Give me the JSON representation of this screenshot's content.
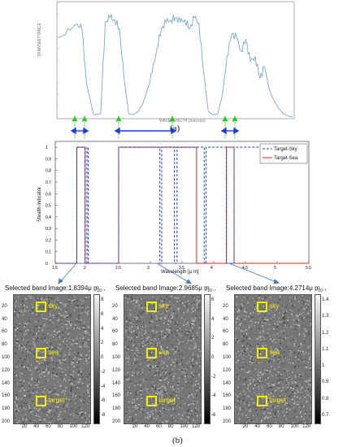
{
  "top_chart": {
    "ylabel": "TRANSMITTANCE",
    "xlabel": "WAVELENGTH (microns)",
    "caption": "(a)"
  },
  "mid_chart": {
    "xlabel": "Wavelength [μ m]",
    "ylabel": "Stealth indicator",
    "legend": [
      "Target-Sky",
      "Target-Sea"
    ],
    "xticks": [
      "1.5",
      "2",
      "2.5",
      "3",
      "3.5",
      "4",
      "4.5",
      "5",
      "5.5"
    ],
    "yticks": [
      "0",
      "0.1",
      "0.2",
      "0.3",
      "0.4",
      "0.5",
      "0.6",
      "0.7",
      "0.8",
      "0.9",
      "1"
    ]
  },
  "chart_data": [
    {
      "type": "line",
      "title": "",
      "xlabel": "WAVELENGTH (microns)",
      "ylabel": "TRANSMITTANCE",
      "series": [
        {
          "name": "",
          "x": [
            0.0,
            0.04,
            0.08,
            0.1,
            0.12,
            0.15,
            0.18,
            0.2,
            0.22,
            0.24,
            0.26,
            0.28,
            0.3,
            0.32,
            0.34,
            0.36,
            0.38,
            0.4,
            0.42,
            0.44,
            0.46,
            0.48,
            0.5,
            0.52,
            0.54,
            0.56,
            0.58,
            0.6,
            0.62,
            0.64,
            0.66,
            0.68,
            0.7,
            0.72,
            0.74,
            0.76,
            0.78,
            0.8,
            0.82,
            0.84,
            0.86,
            0.88,
            0.9,
            0.92,
            0.94,
            0.96,
            0.98,
            1.0
          ],
          "y": [
            0.72,
            0.8,
            0.84,
            0.8,
            0.3,
            0.02,
            0.03,
            0.86,
            0.9,
            0.88,
            0.8,
            0.35,
            0.03,
            0.02,
            0.05,
            0.12,
            0.25,
            0.4,
            0.62,
            0.8,
            0.86,
            0.88,
            0.9,
            0.86,
            0.88,
            0.8,
            0.9,
            0.85,
            0.4,
            0.05,
            0.02,
            0.03,
            0.2,
            0.55,
            0.75,
            0.72,
            0.6,
            0.7,
            0.5,
            0.55,
            0.35,
            0.45,
            0.25,
            0.15,
            0.08,
            0.03,
            0.01,
            0.0
          ]
        }
      ]
    },
    {
      "type": "line",
      "title": "",
      "xlabel": "Wavelength [μ m]",
      "ylabel": "Stealth indicator",
      "xlim": [
        1.5,
        5.5
      ],
      "ylim": [
        0,
        1.05
      ],
      "legend_position": "top-right",
      "series": [
        {
          "name": "Target-Sky",
          "x": [
            1.5,
            1.84,
            1.84,
            1.97,
            1.97,
            2.0,
            2.0,
            2.02,
            2.02,
            2.5,
            2.5,
            3.15,
            3.15,
            3.18,
            3.18,
            3.38,
            3.38,
            3.42,
            3.42,
            3.85,
            3.85,
            3.88,
            3.88,
            4.2,
            4.2,
            4.32,
            4.32,
            5.5
          ],
          "y": [
            0,
            0,
            1,
            1,
            0,
            0,
            1,
            1,
            0,
            0,
            1,
            1,
            0,
            0,
            1,
            1,
            0,
            0,
            1,
            1,
            0,
            0,
            1,
            1,
            0,
            0,
            1,
            1
          ]
        },
        {
          "name": "Target-Sea",
          "x": [
            1.5,
            1.84,
            1.84,
            1.97,
            1.97,
            2.5,
            2.5,
            3.73,
            3.73,
            4.2,
            4.2,
            4.32,
            4.32,
            5.5
          ],
          "y": [
            0,
            0,
            1,
            1,
            0,
            0,
            1,
            1,
            0,
            0,
            1,
            1,
            0,
            0
          ]
        }
      ]
    }
  ],
  "panels": [
    {
      "title": "Selected band Image:1.8394μ m",
      "exp": "× 10⁻⁴",
      "cticks": [
        "8",
        "6",
        "4",
        "2",
        "0",
        "-2",
        "-4",
        "-6",
        "-8"
      ]
    },
    {
      "title": "Selected band Image:2.9685μ m",
      "exp": "× 10⁻⁴",
      "cticks": [
        "6",
        "4",
        "2",
        "0",
        "-2",
        "-4",
        "-6"
      ]
    },
    {
      "title": "Selected band Image:4.2714μ m",
      "exp": "× 10⁻³",
      "cticks": [
        "1.4",
        "1.3",
        "1.2",
        "1.1",
        "1",
        "0.9",
        "0.8",
        "0.7"
      ]
    }
  ],
  "panel_labels": [
    "sky",
    "sea",
    "target"
  ],
  "img_yticks": [
    "20",
    "40",
    "60",
    "80",
    "100",
    "120",
    "140",
    "160",
    "180",
    "200"
  ],
  "img_xticks": [
    "20",
    "40",
    "60",
    "80",
    "100",
    "120"
  ],
  "bottom_caption": "(b)",
  "colors": {
    "green": "#22cc22",
    "blue": "#1f3fd0",
    "red": "#e02020",
    "yellow": "#f2f200",
    "top_line": "#7aa8c8"
  }
}
